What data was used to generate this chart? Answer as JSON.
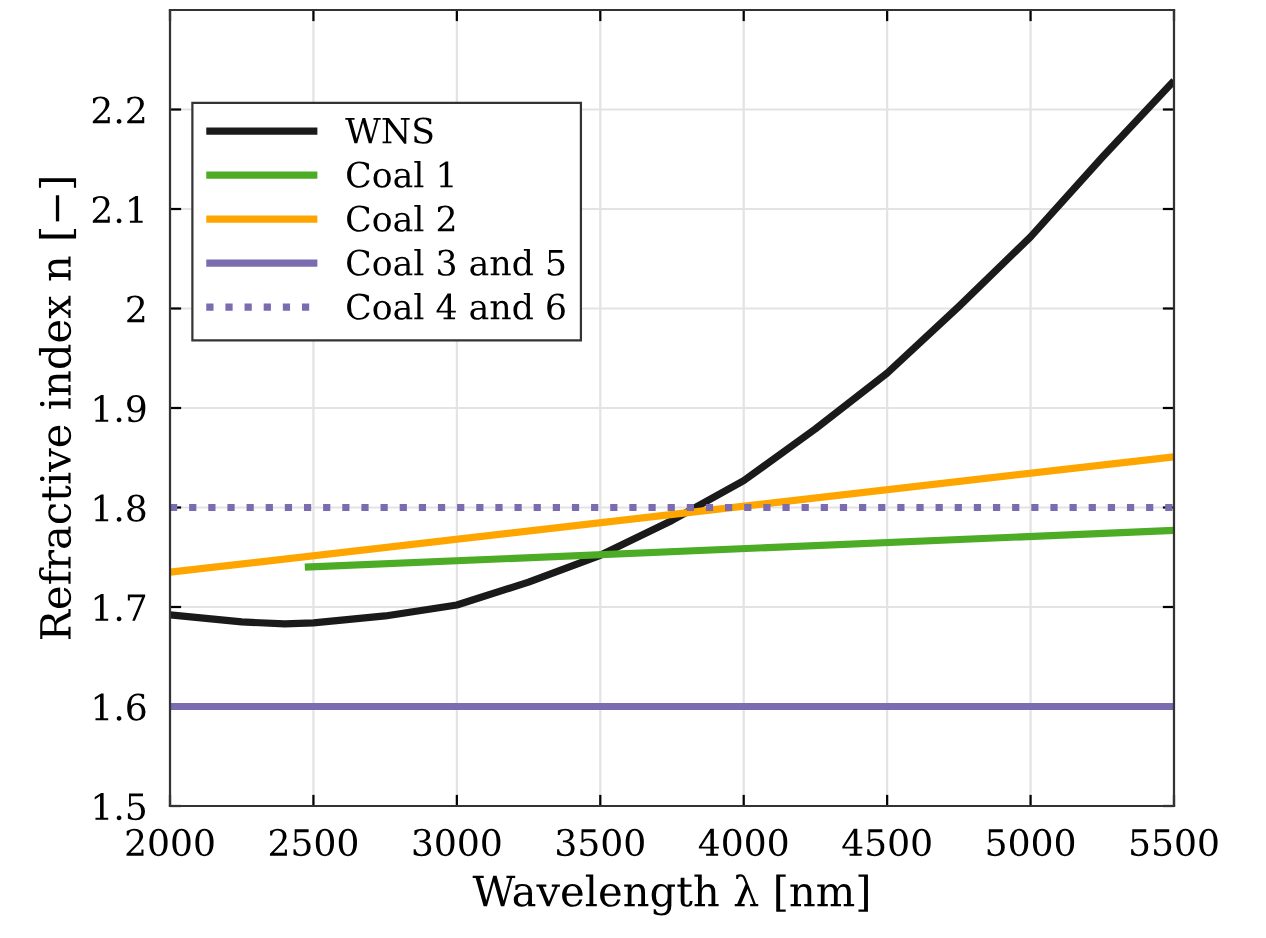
{
  "chart_data": {
    "type": "line",
    "xlabel": "Wavelength λ [nm]",
    "ylabel": "Refractive index n [−]",
    "xlim": [
      2000,
      5500
    ],
    "xticks": [
      2000,
      2500,
      3000,
      3500,
      4000,
      4500,
      5000,
      5500
    ],
    "ylim": [
      1.5,
      2.3
    ],
    "yticks": [
      1.5,
      1.6,
      1.7,
      1.8,
      1.9,
      2,
      2.1,
      2.2
    ],
    "grid": true,
    "legend": "top left",
    "series": [
      {
        "name": "WNS",
        "color": "#1a1a1a",
        "x": [
          2000,
          2250,
          2400,
          2500,
          2750,
          3000,
          3250,
          3500,
          3750,
          4000,
          4250,
          4500,
          4750,
          5000,
          5250,
          5500
        ],
        "values": [
          1.692,
          1.685,
          1.683,
          1.684,
          1.691,
          1.702,
          1.725,
          1.752,
          1.787,
          1.827,
          1.879,
          1.935,
          2.002,
          2.072,
          2.152,
          2.229
        ]
      },
      {
        "name": "Coal 1",
        "color": "#4dac26",
        "x": [
          2470,
          5500
        ],
        "values": [
          1.74,
          1.777
        ]
      },
      {
        "name": "Coal 2",
        "color": "#ffa500",
        "x": [
          2000,
          5500
        ],
        "values": [
          1.735,
          1.851
        ]
      },
      {
        "name": "Coal 3 and 5",
        "color": "#7b6bb0",
        "x": [
          2000,
          5500
        ],
        "values": [
          1.6,
          1.6
        ]
      },
      {
        "name": "Coal 4 and 6",
        "color": "#7b6bb0",
        "line_style": "dotted",
        "x": [
          2000,
          5500
        ],
        "values": [
          1.8,
          1.8
        ]
      }
    ]
  }
}
